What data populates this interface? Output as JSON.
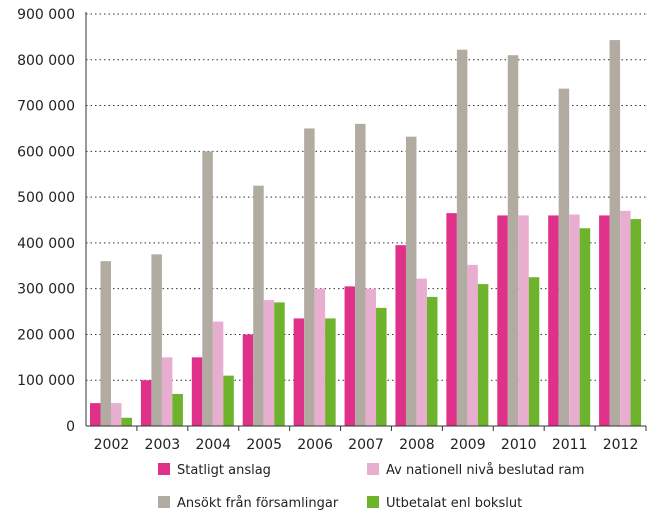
{
  "chart_data": {
    "type": "bar",
    "categories": [
      "2002",
      "2003",
      "2004",
      "2005",
      "2006",
      "2007",
      "2008",
      "2009",
      "2010",
      "2011",
      "2012"
    ],
    "series": [
      {
        "name": "Statligt anslag",
        "color": "#e0318a",
        "values": [
          50000,
          100000,
          150000,
          200000,
          235000,
          305000,
          395000,
          465000,
          460000,
          460000,
          460000
        ]
      },
      {
        "name": "Av nationell nivå beslutad ram",
        "color": "#e8aed0",
        "values": [
          50000,
          150000,
          228000,
          275000,
          300000,
          300000,
          322000,
          352000,
          460000,
          462000,
          470000
        ]
      },
      {
        "name": "Ansökt från församlingar",
        "color": "#b1aba2",
        "values": [
          360000,
          375000,
          600000,
          525000,
          650000,
          660000,
          632000,
          822000,
          810000,
          737000,
          843000
        ]
      },
      {
        "name": "Utbetalat enl bokslut",
        "color": "#6db32b",
        "values": [
          18000,
          70000,
          110000,
          270000,
          235000,
          258000,
          282000,
          310000,
          325000,
          432000,
          452000
        ]
      }
    ],
    "y_ticks": [
      "0",
      "100 000",
      "200 000",
      "300 000",
      "400 000",
      "500 000",
      "600 000",
      "700 000",
      "800 000",
      "900 000"
    ],
    "ylim": [
      0,
      900000
    ],
    "grid": true,
    "legend": {
      "position": "bottom",
      "rows": [
        [
          "Statligt anslag",
          "Av nationell nivå beslutad ram"
        ],
        [
          "Ansökt från församlingar",
          "Utbetalat enl bokslut"
        ]
      ]
    }
  }
}
